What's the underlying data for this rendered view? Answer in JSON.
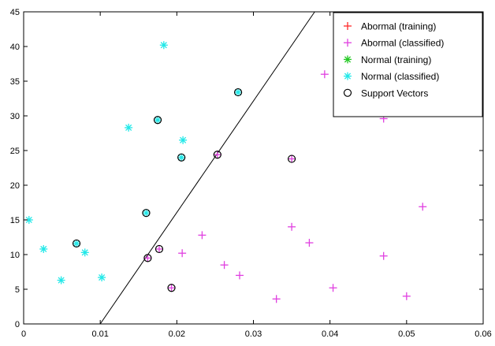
{
  "chart_data": {
    "type": "scatter",
    "title": "",
    "xlabel": "",
    "ylabel": "",
    "xlim": [
      0,
      0.06
    ],
    "ylim": [
      0,
      45
    ],
    "xticks": [
      "0",
      "0.01",
      "0.02",
      "0.03",
      "0.04",
      "0.05",
      "0.06"
    ],
    "yticks": [
      "0",
      "5",
      "10",
      "15",
      "20",
      "25",
      "30",
      "35",
      "40",
      "45"
    ],
    "grid": false,
    "legend_position": "top-right",
    "series": [
      {
        "name": "Abormal (training)",
        "marker": "plus",
        "color": "#ff2a2a",
        "points": []
      },
      {
        "name": "Abormal (classified)",
        "marker": "plus",
        "color": "#e040e0",
        "points": [
          [
            0.0162,
            9.5
          ],
          [
            0.0177,
            10.8
          ],
          [
            0.0193,
            5.2
          ],
          [
            0.0207,
            10.2
          ],
          [
            0.0233,
            12.8
          ],
          [
            0.0253,
            24.4
          ],
          [
            0.0262,
            8.5
          ],
          [
            0.0282,
            7.0
          ],
          [
            0.033,
            3.6
          ],
          [
            0.035,
            14.0
          ],
          [
            0.035,
            23.8
          ],
          [
            0.0373,
            11.7
          ],
          [
            0.0393,
            36.0
          ],
          [
            0.0404,
            5.2
          ],
          [
            0.047,
            29.6
          ],
          [
            0.047,
            9.8
          ],
          [
            0.05,
            4.0
          ],
          [
            0.0521,
            16.9
          ]
        ]
      },
      {
        "name": "Normal (training)",
        "marker": "asterisk",
        "color": "#22c922",
        "points": []
      },
      {
        "name": "Normal (classified)",
        "marker": "asterisk",
        "color": "#20e8e8",
        "points": [
          [
            0.0007,
            15.0
          ],
          [
            0.0026,
            10.8
          ],
          [
            0.0049,
            6.3
          ],
          [
            0.0069,
            11.6
          ],
          [
            0.008,
            10.3
          ],
          [
            0.0102,
            6.7
          ],
          [
            0.0137,
            28.3
          ],
          [
            0.016,
            16.0
          ],
          [
            0.0175,
            29.4
          ],
          [
            0.0183,
            40.2
          ],
          [
            0.0206,
            24.0
          ],
          [
            0.0208,
            26.5
          ],
          [
            0.028,
            33.4
          ]
        ]
      },
      {
        "name": "Support Vectors",
        "marker": "circle",
        "color": "#000000",
        "points": [
          [
            0.0069,
            11.6
          ],
          [
            0.016,
            16.0
          ],
          [
            0.0162,
            9.5
          ],
          [
            0.0175,
            29.4
          ],
          [
            0.0177,
            10.8
          ],
          [
            0.0193,
            5.2
          ],
          [
            0.0206,
            24.0
          ],
          [
            0.0253,
            24.4
          ],
          [
            0.028,
            33.4
          ],
          [
            0.035,
            23.8
          ]
        ]
      }
    ],
    "decision_boundary": {
      "color": "#000000",
      "points": [
        [
          0.01,
          0
        ],
        [
          0.038,
          45
        ]
      ]
    }
  }
}
